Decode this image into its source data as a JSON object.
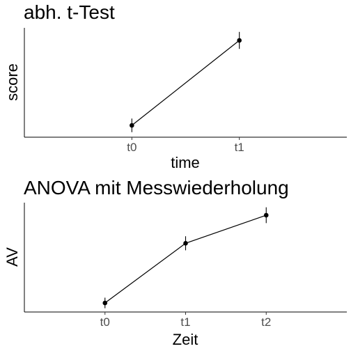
{
  "chart_data": [
    {
      "type": "line",
      "title": "abh. t-Test",
      "xlabel": "time",
      "ylabel": "score",
      "categories": [
        "t0",
        "t1"
      ],
      "values": [
        0.0,
        1.0
      ],
      "error": [
        0.08,
        0.1
      ],
      "y_tick_labels_shown": false,
      "grid": false
    },
    {
      "type": "line",
      "title": "ANOVA mit Messwiederholung",
      "xlabel": "Zeit",
      "ylabel": "AV",
      "categories": [
        "t0",
        "t1",
        "t2"
      ],
      "values": [
        0.0,
        0.68,
        1.0
      ],
      "error": [
        0.06,
        0.08,
        0.09
      ],
      "y_tick_labels_shown": false,
      "grid": false
    }
  ]
}
